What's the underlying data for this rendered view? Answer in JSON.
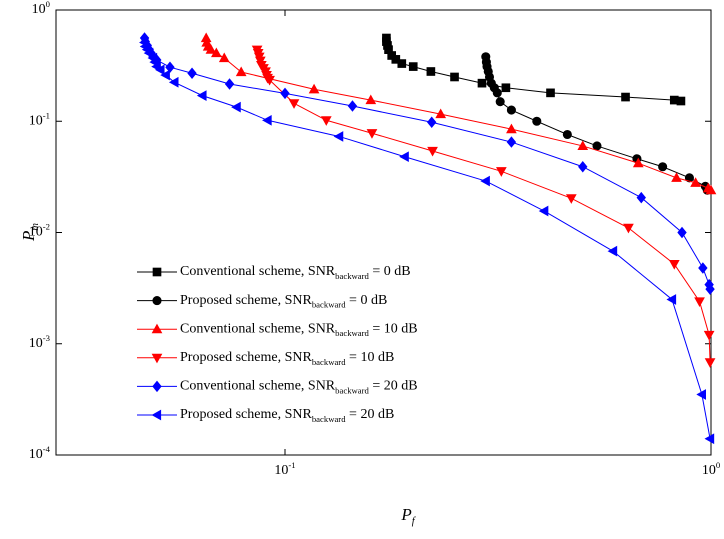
{
  "chart_data": {
    "type": "line",
    "log_x": true,
    "log_y": true,
    "x_label": "P_f",
    "y_label": "P_m",
    "xlim": [
      0.029,
      1
    ],
    "ylim": [
      0.0001,
      1
    ],
    "xticks": [
      {
        "value": 0.1,
        "label": "10^-1"
      },
      {
        "value": 1,
        "label": "10^0"
      }
    ],
    "yticks": [
      {
        "value": 0.0001,
        "label": "10^-4"
      },
      {
        "value": 0.001,
        "label": "10^-3"
      },
      {
        "value": 0.01,
        "label": "10^-2"
      },
      {
        "value": 0.1,
        "label": "10^-1"
      },
      {
        "value": 1,
        "label": "10^0"
      }
    ],
    "legend": "lower left",
    "series": [
      {
        "name": "Conventional scheme, SNR_backward = 0 dB",
        "color": "#000000",
        "marker": "square",
        "x": [
          0.173,
          0.173,
          0.174,
          0.175,
          0.178,
          0.182,
          0.188,
          0.2,
          0.22,
          0.25,
          0.29,
          0.33,
          0.42,
          0.63,
          0.82,
          0.85
        ],
        "values": [
          0.56,
          0.52,
          0.48,
          0.44,
          0.39,
          0.36,
          0.33,
          0.31,
          0.28,
          0.25,
          0.22,
          0.2,
          0.18,
          0.165,
          0.155,
          0.152
        ]
      },
      {
        "name": "Proposed scheme, SNR_backward = 0 dB",
        "color": "#000000",
        "marker": "circle",
        "x": [
          0.296,
          0.297,
          0.298,
          0.3,
          0.302,
          0.305,
          0.31,
          0.315,
          0.32,
          0.34,
          0.39,
          0.46,
          0.54,
          0.67,
          0.77,
          0.89,
          0.97,
          0.98
        ],
        "values": [
          0.38,
          0.34,
          0.31,
          0.28,
          0.25,
          0.22,
          0.2,
          0.18,
          0.15,
          0.126,
          0.1,
          0.076,
          0.06,
          0.046,
          0.039,
          0.031,
          0.026,
          0.024
        ]
      },
      {
        "name": "Conventional scheme, SNR_backward = 10 dB",
        "color": "#ff0000",
        "marker": "triangle-up",
        "x": [
          0.0653,
          0.0655,
          0.066,
          0.067,
          0.069,
          0.072,
          0.0789,
          0.117,
          0.159,
          0.232,
          0.34,
          0.5,
          0.675,
          0.83,
          0.92,
          0.985,
          1.0
        ],
        "values": [
          0.56,
          0.51,
          0.47,
          0.44,
          0.41,
          0.37,
          0.277,
          0.194,
          0.155,
          0.116,
          0.085,
          0.06,
          0.042,
          0.031,
          0.028,
          0.025,
          0.024
        ]
      },
      {
        "name": "Proposed scheme, SNR_backward = 10 dB",
        "color": "#ff0000",
        "marker": "triangle-down",
        "x": [
          0.086,
          0.0865,
          0.087,
          0.0875,
          0.088,
          0.089,
          0.09,
          0.0905,
          0.091,
          0.092,
          0.105,
          0.125,
          0.16,
          0.222,
          0.322,
          0.47,
          0.64,
          0.82,
          0.94,
          0.99,
          0.995
        ],
        "values": [
          0.44,
          0.41,
          0.38,
          0.35,
          0.32,
          0.3,
          0.28,
          0.26,
          0.245,
          0.235,
          0.145,
          0.102,
          0.078,
          0.054,
          0.0355,
          0.0203,
          0.011,
          0.0052,
          0.0024,
          0.0012,
          0.00068
        ]
      },
      {
        "name": "Conventional scheme, SNR_backward = 20 dB",
        "color": "#0000ff",
        "marker": "diamond",
        "x": [
          0.0468,
          0.047,
          0.0475,
          0.048,
          0.0485,
          0.049,
          0.05,
          0.0537,
          0.0605,
          0.0741,
          0.1,
          0.144,
          0.221,
          0.34,
          0.5,
          0.686,
          0.855,
          0.957,
          0.99,
          0.995
        ],
        "values": [
          0.56,
          0.52,
          0.48,
          0.44,
          0.41,
          0.38,
          0.355,
          0.306,
          0.27,
          0.216,
          0.178,
          0.137,
          0.098,
          0.065,
          0.039,
          0.0206,
          0.01,
          0.0048,
          0.0034,
          0.0031
        ]
      },
      {
        "name": "Proposed scheme, SNR_backward = 20 dB",
        "color": "#0000ff",
        "marker": "triangle-left",
        "x": [
          0.0468,
          0.047,
          0.0475,
          0.048,
          0.049,
          0.0495,
          0.05,
          0.051,
          0.0525,
          0.055,
          0.064,
          0.077,
          0.091,
          0.134,
          0.191,
          0.296,
          0.406,
          0.589,
          0.81,
          0.952,
          0.995
        ],
        "values": [
          0.51,
          0.47,
          0.44,
          0.41,
          0.37,
          0.34,
          0.31,
          0.29,
          0.26,
          0.224,
          0.17,
          0.134,
          0.102,
          0.073,
          0.048,
          0.029,
          0.0156,
          0.0068,
          0.0025,
          0.00035,
          0.00014
        ]
      }
    ]
  }
}
